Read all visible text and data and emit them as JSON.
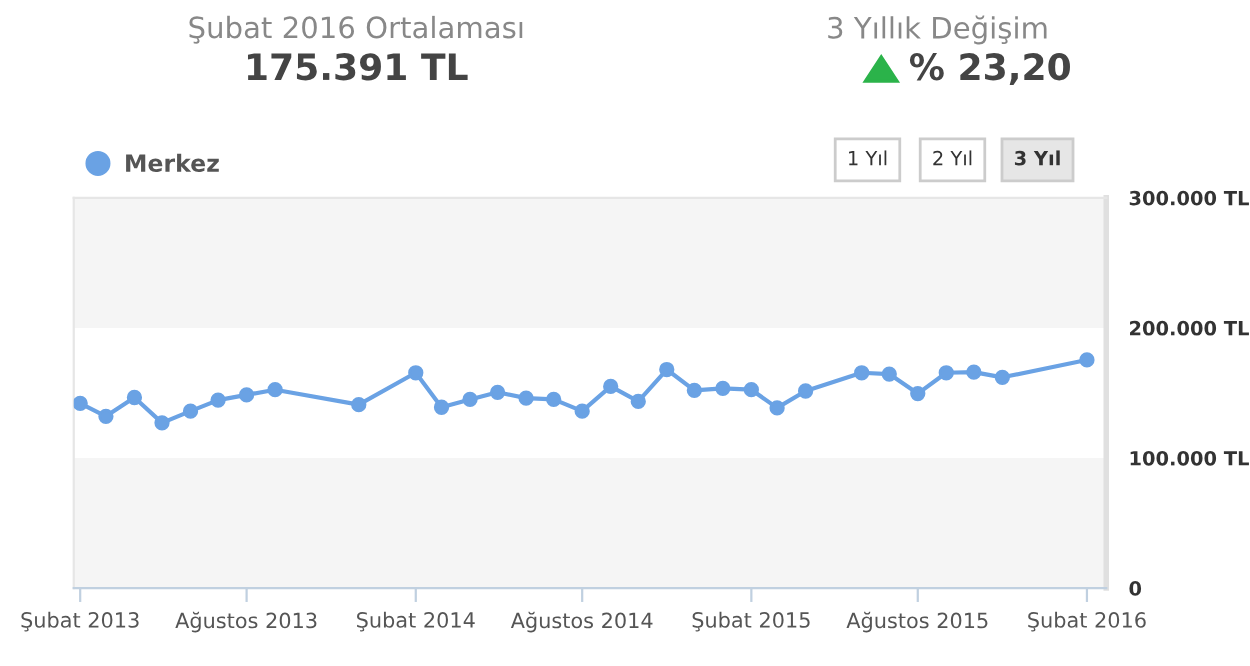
{
  "chart_data": {
    "type": "line",
    "title": "Şubat 2016 Ortalaması",
    "subtitle": "175.391 TL",
    "annotations": [
      "3 Yıllık Değişim",
      "% 23,20",
      "1 Yıl",
      "2 Yıl",
      "3 Yıl"
    ],
    "x": [
      "2013-02-01",
      "2013-03-01",
      "2013-04-01",
      "2013-05-01",
      "2013-06-01",
      "2013-07-01",
      "2013-08-01",
      "2013-09-01",
      "2013-12-01",
      "2014-02-01",
      "2014-03-01",
      "2014-04-01",
      "2014-05-01",
      "2014-06-01",
      "2014-07-01",
      "2014-08-01",
      "2014-09-01",
      "2014-10-01",
      "2014-11-01",
      "2014-12-01",
      "2015-01-01",
      "2015-02-01",
      "2015-03-01",
      "2015-04-01",
      "2015-06-01",
      "2015-07-01",
      "2015-08-01",
      "2015-09-01",
      "2015-10-01",
      "2015-11-01",
      "2016-02-01"
    ],
    "series": [
      {
        "name": "Merkez",
        "color": "#6aa2e4",
        "values": [
          142000,
          132000,
          146500,
          127000,
          136000,
          144500,
          148500,
          152500,
          141000,
          165500,
          139000,
          145000,
          150500,
          146000,
          145000,
          136000,
          155000,
          143500,
          168000,
          152000,
          153500,
          152500,
          138500,
          151500,
          165500,
          164500,
          149500,
          165500,
          166000,
          162000,
          175391
        ]
      }
    ],
    "xlim": [
      "2013-01-25",
      "2016-02-22"
    ],
    "xticks": [
      {
        "value": "2013-02-01",
        "label": "Şubat 2013"
      },
      {
        "value": "2013-08-01",
        "label": "Ağustos 2013"
      },
      {
        "value": "2014-02-01",
        "label": "Şubat 2014"
      },
      {
        "value": "2014-08-01",
        "label": "Ağustos 2014"
      },
      {
        "value": "2015-02-01",
        "label": "Şubat 2015"
      },
      {
        "value": "2015-08-01",
        "label": "Ağustos 2015"
      },
      {
        "value": "2016-02-01",
        "label": "Şubat 2016"
      }
    ],
    "ylim": [
      0,
      300000
    ],
    "yticks": [
      {
        "value": 0,
        "label": "0"
      },
      {
        "value": 100000,
        "label": "100.000 TL"
      },
      {
        "value": 200000,
        "label": "200.000 TL"
      },
      {
        "value": 300000,
        "label": "300.000 TL"
      }
    ],
    "bands": [
      {
        "axis": "y",
        "from": 0,
        "to": 100000,
        "color": "#f5f5f5"
      },
      {
        "axis": "y",
        "from": 200000,
        "to": 300000,
        "color": "#f5f5f5"
      }
    ],
    "grid": false,
    "legend": "top left",
    "marker": "circle",
    "line_style": "solid"
  }
}
